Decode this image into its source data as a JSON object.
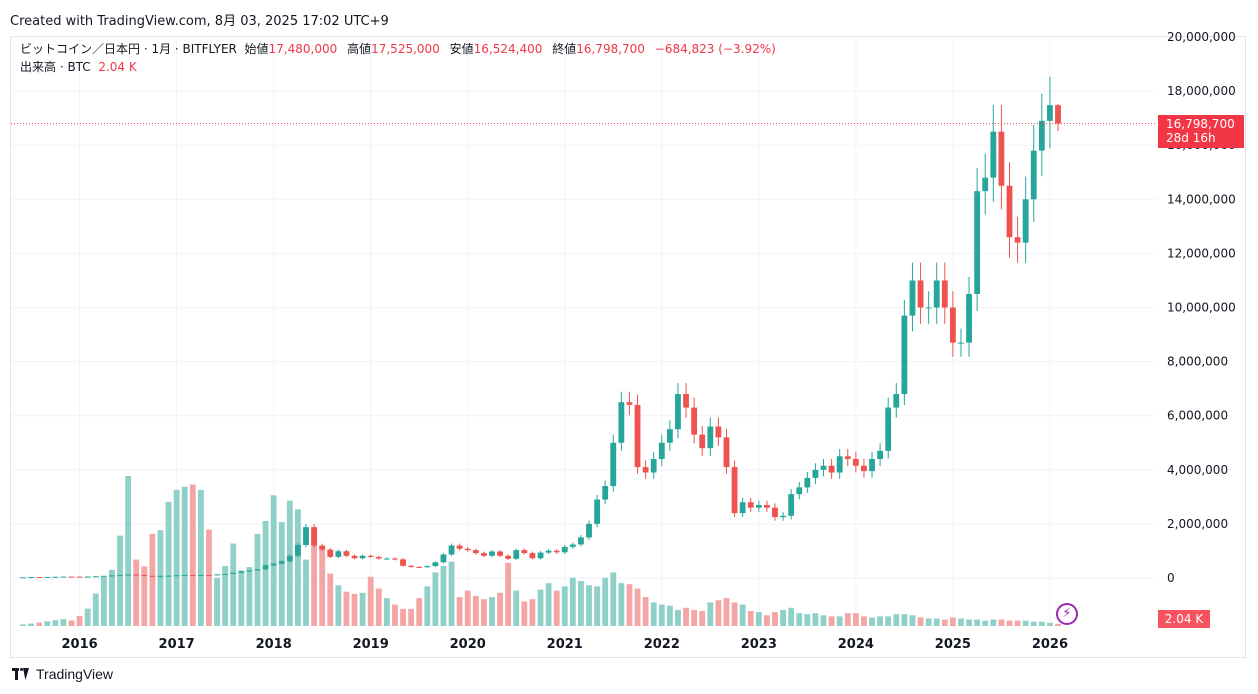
{
  "header": {
    "created": "Created with TradingView.com, 8月 03, 2025 17:02 UTC+9"
  },
  "legend": {
    "symbol": "ビットコイン／日本円 · 1月 · BITFLYER",
    "open_label": "始値",
    "open": "17,480,000",
    "high_label": "高値",
    "high": "17,525,000",
    "low_label": "安値",
    "low": "16,524,400",
    "close_label": "終値",
    "close": "16,798,700",
    "change": "−684,823 (−3.92%)",
    "volume_label": "出来高 · BTC",
    "volume": "2.04 K"
  },
  "price_tag": {
    "price": "16,798,700",
    "countdown": "28d 16h"
  },
  "volume_tag": "2.04 K",
  "footer": {
    "brand": "TradingView"
  },
  "colors": {
    "up": "#26a69a",
    "down": "#ef5350",
    "vol_up": "#8fd0c8",
    "vol_down": "#f4a6a6",
    "last_line": "#f23645"
  },
  "icons": {
    "bolt": "lightning-icon"
  },
  "chart_data": {
    "type": "candlestick",
    "interval": "1M",
    "price_axis": {
      "ticks": [
        0,
        2000000,
        4000000,
        6000000,
        8000000,
        10000000,
        12000000,
        14000000,
        16000000,
        18000000,
        20000000
      ],
      "tick_labels": [
        "0",
        "2,000,000",
        "4,000,000",
        "6,000,000",
        "8,000,000",
        "10,000,000",
        "12,000,000",
        "14,000,000",
        "16,000,000",
        "18,000,000",
        "20,000,000"
      ]
    },
    "time_axis": {
      "labels": [
        "2016",
        "2017",
        "2018",
        "2019",
        "2020",
        "2021",
        "2022",
        "2023",
        "2024",
        "2025",
        "2026"
      ],
      "first_bar": "2015-06"
    },
    "last_price": 16798700,
    "close": [
      27000,
      34000,
      29000,
      38000,
      45000,
      52000,
      50000,
      45000,
      54000,
      64000,
      80000,
      95000,
      107000,
      125000,
      110000,
      81000,
      76000,
      80000,
      85000,
      100000,
      113000,
      110000,
      115000,
      112000,
      135000,
      150000,
      190000,
      240000,
      280000,
      320000,
      470000,
      530000,
      620000,
      820000,
      1220000,
      1880000,
      1200000,
      1050000,
      780000,
      990000,
      820000,
      730000,
      820000,
      780000,
      720000,
      720000,
      690000,
      450000,
      410000,
      400000,
      440000,
      580000,
      870000,
      1200000,
      1080000,
      1030000,
      920000,
      820000,
      980000,
      820000,
      710000,
      1030000,
      920000,
      730000,
      940000,
      1010000,
      950000,
      1150000,
      1240000,
      1500000,
      2000000,
      2900000,
      3400000,
      5000000,
      6500000,
      6400000,
      4100000,
      3900000,
      4400000,
      5000000,
      5500000,
      6800000,
      6300000,
      5300000,
      4800000,
      5600000,
      5200000,
      4100000,
      2400000,
      2800000,
      2600000,
      2700000,
      2600000,
      2250000,
      2300000,
      3100000,
      3350000,
      3700000,
      4000000,
      4150000,
      3900000,
      4500000,
      4400000,
      4150000,
      3950000,
      4400000,
      4700000,
      6300000,
      6800000,
      9700000,
      11000000,
      10000000,
      10000000,
      11000000,
      10000000,
      8700000,
      8700000,
      10500000,
      14300000,
      14800000,
      16500000,
      14500000,
      12600000,
      12400000,
      14000000,
      15800000,
      16900000,
      17480000,
      16798700
    ],
    "volume_btc_k": [
      1.5,
      2.3,
      3.2,
      4.4,
      5.4,
      6.4,
      5.2,
      9.3,
      16.2,
      30.3,
      45.8,
      52.4,
      84.4,
      140,
      62,
      55.6,
      86,
      89.4,
      116,
      127,
      130,
      132,
      127,
      90,
      45,
      56,
      77,
      52,
      55,
      86,
      98,
      122,
      97,
      117,
      109,
      62,
      90,
      73,
      49,
      38,
      32,
      30,
      31,
      46,
      35,
      26,
      20,
      16,
      16,
      26,
      37,
      50,
      56,
      60,
      27,
      33,
      28,
      25,
      27,
      31,
      59,
      33,
      23,
      25,
      34,
      40,
      33,
      37,
      45,
      42,
      38,
      37,
      45,
      50,
      40,
      39,
      35,
      27,
      22,
      20,
      19,
      15,
      17,
      15,
      14,
      22,
      24,
      26,
      22,
      20,
      14,
      13,
      10,
      13,
      15,
      17,
      12,
      11,
      12,
      10,
      9,
      9,
      12,
      12,
      9,
      8,
      9,
      9,
      11,
      11,
      10,
      8,
      7,
      7,
      6,
      8,
      7,
      6,
      6,
      5,
      6,
      6,
      5,
      5,
      5,
      4,
      4,
      3,
      2.04
    ]
  }
}
